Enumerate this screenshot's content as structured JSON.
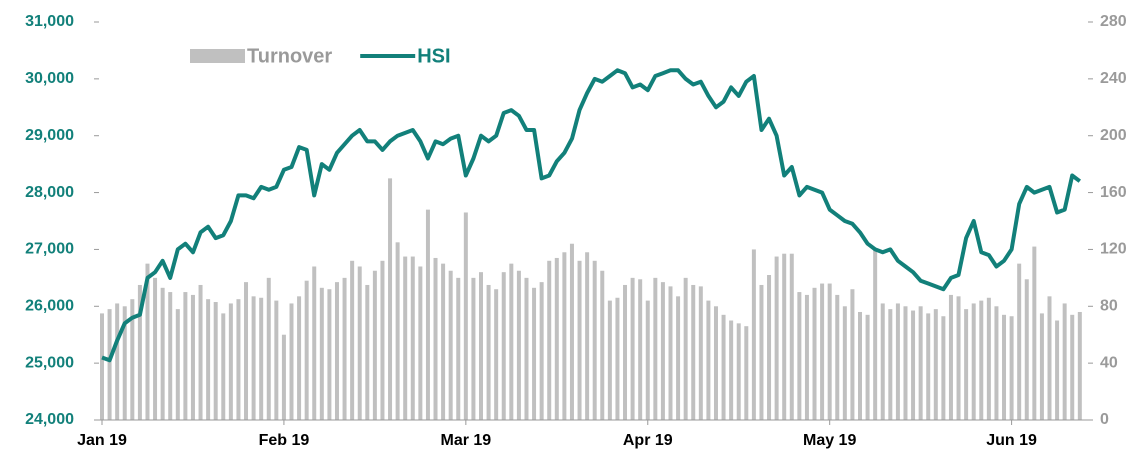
{
  "chart_data": {
    "type": "bar-line",
    "categories": [
      "Jan 19",
      null,
      null,
      null,
      null,
      null,
      null,
      null,
      null,
      null,
      null,
      null,
      null,
      null,
      null,
      null,
      null,
      null,
      null,
      null,
      null,
      null,
      null,
      null,
      "Feb 19",
      null,
      null,
      null,
      null,
      null,
      null,
      null,
      null,
      null,
      null,
      null,
      null,
      null,
      null,
      null,
      null,
      null,
      null,
      null,
      null,
      null,
      null,
      null,
      "Mar 19",
      null,
      null,
      null,
      null,
      null,
      null,
      null,
      null,
      null,
      null,
      null,
      null,
      null,
      null,
      null,
      null,
      null,
      null,
      null,
      null,
      null,
      null,
      null,
      "Apr 19",
      null,
      null,
      null,
      null,
      null,
      null,
      null,
      null,
      null,
      null,
      null,
      null,
      null,
      null,
      null,
      null,
      null,
      null,
      null,
      null,
      null,
      null,
      null,
      "May 19",
      null,
      null,
      null,
      null,
      null,
      null,
      null,
      null,
      null,
      null,
      null,
      null,
      null,
      null,
      null,
      null,
      null,
      null,
      null,
      null,
      null,
      null,
      null,
      "Jun 19",
      null,
      null,
      null,
      null,
      null,
      null,
      null,
      null,
      null
    ],
    "series": [
      {
        "name": "Turnover",
        "type": "bar",
        "axis": "y2",
        "color": "#c0c0c0",
        "values": [
          75,
          78,
          82,
          80,
          85,
          95,
          110,
          100,
          93,
          90,
          78,
          90,
          88,
          95,
          85,
          83,
          75,
          82,
          85,
          97,
          87,
          86,
          100,
          84,
          60,
          82,
          87,
          98,
          108,
          93,
          92,
          97,
          100,
          112,
          108,
          95,
          105,
          112,
          170,
          125,
          115,
          115,
          108,
          148,
          114,
          110,
          105,
          100,
          146,
          100,
          104,
          95,
          92,
          104,
          110,
          105,
          100,
          93,
          97,
          112,
          114,
          118,
          124,
          112,
          118,
          112,
          105,
          84,
          86,
          95,
          100,
          99,
          84,
          100,
          97,
          94,
          87,
          100,
          95,
          94,
          84,
          80,
          74,
          70,
          68,
          66,
          120,
          95,
          102,
          115,
          117,
          117,
          90,
          88,
          93,
          96,
          96,
          88,
          80,
          92,
          76,
          74,
          120,
          82,
          78,
          82,
          80,
          77,
          80,
          75,
          78,
          73,
          88,
          87,
          78,
          82,
          84,
          86,
          80,
          74,
          73,
          110,
          99,
          122,
          75,
          87,
          70,
          82,
          74,
          76
        ]
      },
      {
        "name": "HSI",
        "type": "line",
        "axis": "y",
        "color": "#12807a",
        "values": [
          25100,
          25050,
          25400,
          25700,
          25800,
          25850,
          26500,
          26600,
          26800,
          26500,
          27000,
          27100,
          26950,
          27300,
          27400,
          27200,
          27250,
          27500,
          27950,
          27950,
          27900,
          28100,
          28050,
          28100,
          28400,
          28450,
          28800,
          28750,
          27950,
          28500,
          28400,
          28700,
          28850,
          29000,
          29100,
          28900,
          28900,
          28750,
          28900,
          29000,
          29050,
          29100,
          28900,
          28600,
          28900,
          28850,
          28950,
          29000,
          28300,
          28600,
          29000,
          28900,
          29000,
          29400,
          29450,
          29350,
          29100,
          29100,
          28250,
          28300,
          28550,
          28700,
          28950,
          29450,
          29750,
          30000,
          29950,
          30050,
          30150,
          30100,
          29850,
          29900,
          29800,
          30050,
          30100,
          30150,
          30150,
          30000,
          29900,
          29950,
          29700,
          29500,
          29600,
          29850,
          29700,
          29950,
          30050,
          29100,
          29300,
          29000,
          28300,
          28450,
          27950,
          28100,
          28050,
          28000,
          27700,
          27600,
          27500,
          27450,
          27300,
          27100,
          27000,
          26950,
          27000,
          26800,
          26700,
          26600,
          26450,
          26400,
          26350,
          26300,
          26500,
          26550,
          27200,
          27500,
          26950,
          26900,
          26700,
          26800,
          27000,
          27800,
          28100,
          28000,
          28050,
          28100,
          27650,
          27700,
          28300,
          28200
        ]
      }
    ],
    "ylim": [
      24000,
      31000
    ],
    "yticks": [
      {
        "value": 24000,
        "label": "24,000"
      },
      {
        "value": 25000,
        "label": "25,000"
      },
      {
        "value": 26000,
        "label": "26,000"
      },
      {
        "value": 27000,
        "label": "27,000"
      },
      {
        "value": 28000,
        "label": "28,000"
      },
      {
        "value": 29000,
        "label": "29,000"
      },
      {
        "value": 30000,
        "label": "30,000"
      },
      {
        "value": 31000,
        "label": "31,000"
      }
    ],
    "y2lim": [
      0,
      280
    ],
    "y2ticks": [
      0,
      40,
      80,
      120,
      160,
      200,
      240,
      280
    ],
    "legend": "top-left"
  }
}
